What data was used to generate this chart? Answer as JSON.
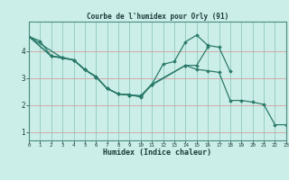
{
  "title": "Courbe de l'humidex pour Orly (91)",
  "xlabel": "Humidex (Indice chaleur)",
  "bg_color": "#cceee8",
  "line_color": "#2a7a6a",
  "xlim": [
    0,
    23
  ],
  "ylim": [
    0.7,
    5.1
  ],
  "yticks": [
    1,
    2,
    3,
    4
  ],
  "xticks": [
    0,
    1,
    2,
    3,
    4,
    5,
    6,
    7,
    8,
    9,
    10,
    11,
    12,
    13,
    14,
    15,
    16,
    17,
    18,
    19,
    20,
    21,
    22,
    23
  ],
  "lines": [
    {
      "x": [
        0,
        1,
        2,
        3,
        4,
        5,
        6,
        7,
        8,
        9,
        10,
        11,
        14,
        15,
        16,
        17,
        18,
        19,
        20,
        21,
        22,
        23
      ],
      "y": [
        4.55,
        4.38,
        3.82,
        3.75,
        3.68,
        3.32,
        3.07,
        2.62,
        2.42,
        2.38,
        2.33,
        2.78,
        3.48,
        3.33,
        3.28,
        3.22,
        2.18,
        2.18,
        2.12,
        2.03,
        1.28,
        1.28
      ]
    },
    {
      "x": [
        0,
        2,
        3,
        4,
        5,
        6,
        7,
        8,
        9,
        10,
        11,
        12,
        13,
        14,
        15,
        16,
        17,
        18
      ],
      "y": [
        4.55,
        3.82,
        3.78,
        3.68,
        3.32,
        3.05,
        2.62,
        2.42,
        2.38,
        2.35,
        2.78,
        3.52,
        3.62,
        4.35,
        4.6,
        4.22,
        4.15,
        3.25
      ]
    },
    {
      "x": [
        0,
        2,
        3,
        4,
        5,
        6,
        7,
        8,
        9,
        10,
        11,
        14,
        15,
        16
      ],
      "y": [
        4.55,
        3.82,
        3.75,
        3.68,
        3.32,
        3.05,
        2.62,
        2.42,
        2.38,
        2.35,
        2.75,
        3.48,
        3.48,
        4.15
      ]
    },
    {
      "x": [
        0,
        3,
        4,
        5,
        6,
        7,
        8,
        9,
        10,
        11
      ],
      "y": [
        4.55,
        3.75,
        3.68,
        3.32,
        3.05,
        2.62,
        2.42,
        2.4,
        2.3,
        2.78
      ]
    }
  ]
}
